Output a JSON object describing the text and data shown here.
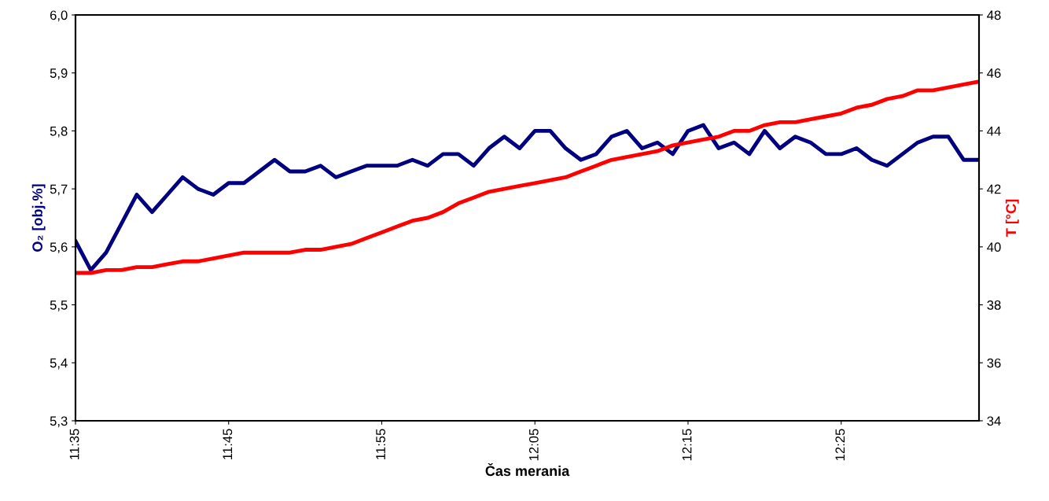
{
  "chart_data": {
    "type": "line",
    "xlabel": "Čas merania",
    "ylabel": "O₂ [obj.%]",
    "y2label": "T [°C]",
    "categories": [
      "11:35",
      null,
      null,
      null,
      null,
      null,
      null,
      null,
      null,
      null,
      "11:45",
      null,
      null,
      null,
      null,
      null,
      null,
      null,
      null,
      null,
      "11:55",
      null,
      null,
      null,
      null,
      null,
      null,
      null,
      null,
      null,
      "12:05",
      null,
      null,
      null,
      null,
      null,
      null,
      null,
      null,
      null,
      "12:15",
      null,
      null,
      null,
      null,
      null,
      null,
      null,
      null,
      null,
      "12:25",
      null,
      null,
      null,
      null,
      null,
      null,
      null,
      null,
      null
    ],
    "series": [
      {
        "color": "#000080",
        "values": [
          5.61,
          5.56,
          5.59,
          5.64,
          5.69,
          5.66,
          5.69,
          5.72,
          5.7,
          5.69,
          5.71,
          5.71,
          5.73,
          5.75,
          5.73,
          5.73,
          5.74,
          5.72,
          5.73,
          5.74,
          5.74,
          5.74,
          5.75,
          5.74,
          5.76,
          5.76,
          5.74,
          5.77,
          5.79,
          5.77,
          5.8,
          5.8,
          5.77,
          5.75,
          5.76,
          5.79,
          5.8,
          5.77,
          5.78,
          5.76,
          5.8,
          5.81,
          5.77,
          5.78,
          5.76,
          5.8,
          5.77,
          5.79,
          5.78,
          5.76,
          5.76,
          5.77,
          5.75,
          5.74,
          5.76,
          5.78,
          5.79,
          5.79,
          5.75,
          5.75
        ]
      },
      {
        "color": "#ff0000",
        "axis": "y2",
        "values": [
          39.1,
          39.1,
          39.2,
          39.2,
          39.3,
          39.3,
          39.4,
          39.5,
          39.5,
          39.6,
          39.7,
          39.8,
          39.8,
          39.8,
          39.8,
          39.9,
          39.9,
          40.0,
          40.1,
          40.3,
          40.5,
          40.7,
          40.9,
          41.0,
          41.2,
          41.5,
          41.7,
          41.9,
          42.0,
          42.1,
          42.2,
          42.3,
          42.4,
          42.6,
          42.8,
          43.0,
          43.1,
          43.2,
          43.3,
          43.5,
          43.6,
          43.7,
          43.8,
          44.0,
          44.0,
          44.2,
          44.3,
          44.3,
          44.4,
          44.5,
          44.6,
          44.8,
          44.9,
          45.1,
          45.2,
          45.4,
          45.4,
          45.5,
          45.6,
          45.7
        ]
      }
    ],
    "ylim": [
      5.3,
      6.0
    ],
    "yticks": [
      {
        "value": 5.3,
        "label": "5,3"
      },
      {
        "value": 5.4,
        "label": "5,4"
      },
      {
        "value": 5.5,
        "label": "5,5"
      },
      {
        "value": 5.6,
        "label": "5,6"
      },
      {
        "value": 5.7,
        "label": "5,7"
      },
      {
        "value": 5.8,
        "label": "5,8"
      },
      {
        "value": 5.9,
        "label": "5,9"
      },
      {
        "value": 6.0,
        "label": "6,0"
      }
    ],
    "y2lim": [
      34,
      48
    ],
    "y2ticks": [
      34,
      36,
      38,
      40,
      42,
      44,
      46,
      48
    ],
    "grid": false,
    "legend": false,
    "marker": "none",
    "line_style": "solid"
  }
}
